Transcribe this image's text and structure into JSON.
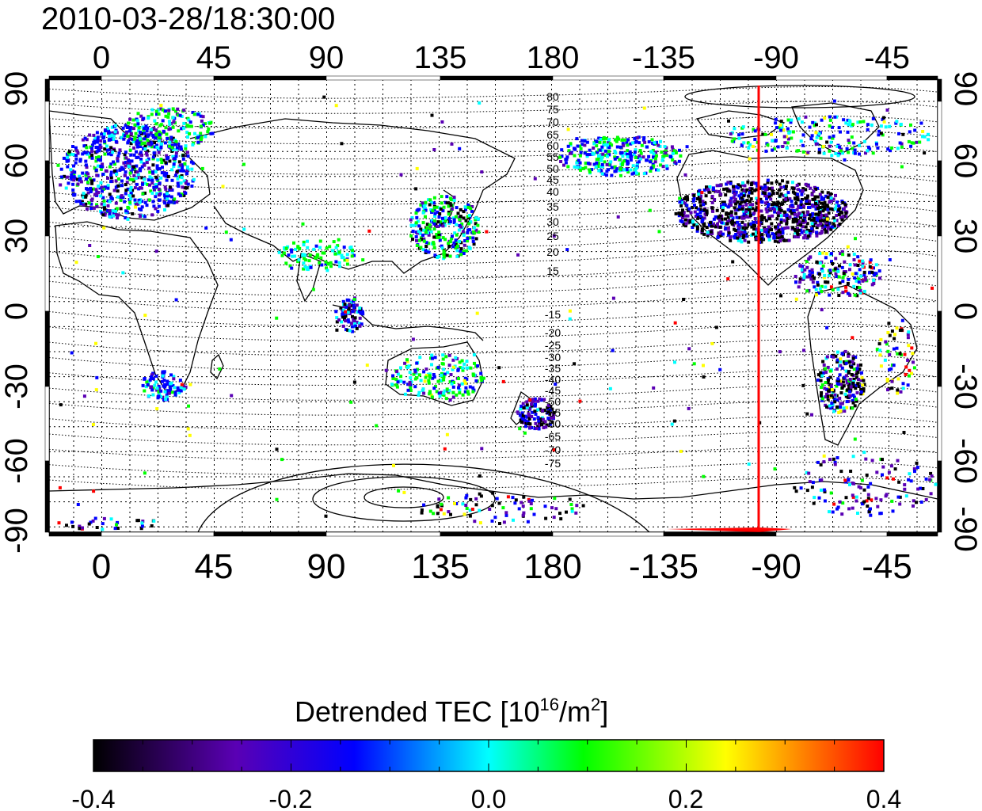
{
  "title": "2010-03-28/18:30:00",
  "map": {
    "x_ticks": [
      "0",
      "45",
      "90",
      "135",
      "180",
      "-135",
      "-90",
      "-45"
    ],
    "y_ticks_left": [
      "90",
      "60",
      "30",
      "0",
      "-30",
      "-60",
      "-90"
    ],
    "y_ticks_right": [
      "90",
      "60",
      "30",
      "0",
      "-30",
      "-60",
      "-90"
    ],
    "contour_labels": [
      "80",
      "75",
      "70",
      "65",
      "60",
      "55",
      "50",
      "45",
      "40",
      "35",
      "30",
      "25",
      "20",
      "15",
      "-15",
      "-20",
      "-25",
      "-30",
      "-35",
      "-40",
      "-45",
      "-50",
      "-55",
      "-60",
      "-65",
      "-70",
      "-75"
    ],
    "marker_longitude_label": "-90",
    "marker_color": "#ff0000",
    "grid": "dotted"
  },
  "colorbar": {
    "label_main": "Detrended TEC  [10",
    "label_sup1": "16",
    "label_mid": "/m",
    "label_sup2": "2",
    "label_end": "]",
    "ticks": [
      "-0.4",
      "-0.2",
      "0.0",
      "0.2",
      "0.4"
    ],
    "range": [
      -0.4,
      0.4
    ],
    "colors": [
      "#000000",
      "#5a00b4",
      "#0000ff",
      "#00ffff",
      "#00ff00",
      "#ffff00",
      "#ff0000"
    ]
  }
}
